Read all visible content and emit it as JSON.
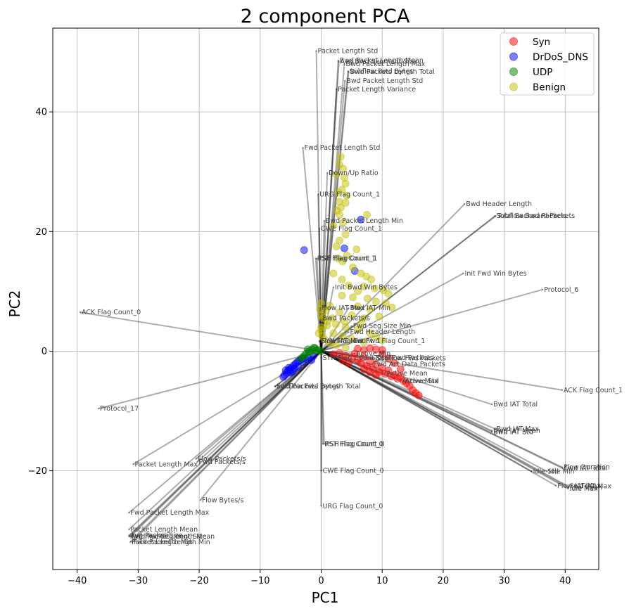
{
  "chart_data": {
    "type": "scatter",
    "title": "2 component PCA",
    "xlabel": "PC1",
    "ylabel": "PC2",
    "xlim": [
      -44,
      45.5
    ],
    "ylim": [
      -36.5,
      54
    ],
    "xticks": [
      -40,
      -30,
      -20,
      -10,
      0,
      10,
      20,
      30,
      40
    ],
    "yticks": [
      -20,
      0,
      20,
      40
    ],
    "xtick_labels": [
      "−40",
      "−30",
      "−20",
      "−10",
      "0",
      "10",
      "20",
      "30",
      "40"
    ],
    "ytick_labels": [
      "−20",
      "0",
      "20",
      "40"
    ],
    "grid": true,
    "legend_position": "top-right",
    "series": [
      {
        "name": "Syn",
        "color": "#ff0000",
        "points": [
          [
            2,
            -0.5
          ],
          [
            3,
            -0.3
          ],
          [
            4,
            -0.8
          ],
          [
            5,
            -1.2
          ],
          [
            5.5,
            -0.4
          ],
          [
            6,
            -1.5
          ],
          [
            6.5,
            -2
          ],
          [
            7,
            -1
          ],
          [
            7.5,
            -2.5
          ],
          [
            8,
            -1.8
          ],
          [
            8.5,
            -3
          ],
          [
            9,
            -2.2
          ],
          [
            9.5,
            -3.5
          ],
          [
            10,
            -2.8
          ],
          [
            10.5,
            -3.8
          ],
          [
            11,
            -3.2
          ],
          [
            11.5,
            -4.2
          ],
          [
            12,
            -4
          ],
          [
            12.5,
            -4.6
          ],
          [
            13,
            -4.2
          ],
          [
            13.5,
            -5
          ],
          [
            14,
            -5.4
          ],
          [
            14.5,
            -5.8
          ],
          [
            15,
            -6.5
          ],
          [
            15.5,
            -7
          ],
          [
            16,
            -7.4
          ],
          [
            9,
            0.3
          ],
          [
            8,
            0.5
          ],
          [
            6,
            0.4
          ],
          [
            10,
            -0.5
          ],
          [
            11,
            -1.2
          ],
          [
            12,
            -2
          ],
          [
            13,
            -3
          ],
          [
            4.5,
            -2
          ],
          [
            3.5,
            -1.5
          ],
          [
            7,
            -3
          ],
          [
            8,
            -3.5
          ],
          [
            9,
            -4
          ],
          [
            10,
            0.2
          ],
          [
            7,
            0.2
          ]
        ]
      },
      {
        "name": "DrDoS_DNS",
        "color": "#0000ff",
        "points": [
          [
            -6,
            -4
          ],
          [
            -5.7,
            -3.6
          ],
          [
            -5.4,
            -3.3
          ],
          [
            -5.1,
            -3
          ],
          [
            -4.8,
            -2.7
          ],
          [
            -4.5,
            -2.4
          ],
          [
            -4.2,
            -2.1
          ],
          [
            -3.9,
            -1.8
          ],
          [
            -3.6,
            -1.6
          ],
          [
            -3.3,
            -1.4
          ],
          [
            -3,
            -1.2
          ],
          [
            -5.8,
            -3.2
          ],
          [
            -5,
            -3.6
          ],
          [
            -4.4,
            -2.9
          ],
          [
            -6.2,
            -4.3
          ],
          [
            -3,
            -1.8
          ],
          [
            -2.6,
            -1.3
          ],
          [
            -2.2,
            -1
          ],
          [
            -1.6,
            -1.5
          ],
          [
            -1.3,
            -0.8
          ],
          [
            -4.7,
            -3.4
          ],
          [
            -3.8,
            -2.6
          ],
          [
            -5.3,
            -2.8
          ],
          [
            -2.8,
            16.9
          ],
          [
            3.8,
            17.2
          ],
          [
            5.5,
            13.4
          ],
          [
            6.5,
            22
          ]
        ]
      },
      {
        "name": "UDP",
        "color": "#008000",
        "points": [
          [
            -3,
            -1
          ],
          [
            -2.5,
            -0.4
          ],
          [
            -2,
            0
          ],
          [
            -1.5,
            0.3
          ],
          [
            -1,
            0.5
          ],
          [
            -0.5,
            0.2
          ],
          [
            0,
            0
          ],
          [
            -2.8,
            -0.8
          ],
          [
            -1.8,
            -0.2
          ],
          [
            -1.2,
            0.6
          ],
          [
            -0.8,
            0.1
          ],
          [
            -2.2,
            0.3
          ],
          [
            -3.4,
            -1.3
          ]
        ]
      },
      {
        "name": "Benign",
        "color": "#bfbf00",
        "points": [
          [
            3.2,
            32.5
          ],
          [
            3,
            31.2
          ],
          [
            3.6,
            30.5
          ],
          [
            2.5,
            29.5
          ],
          [
            3.8,
            29
          ],
          [
            4,
            28
          ],
          [
            3.4,
            27
          ],
          [
            2.8,
            26.5
          ],
          [
            4.2,
            26
          ],
          [
            3,
            25
          ],
          [
            4,
            24.8
          ],
          [
            3.2,
            24
          ],
          [
            2.6,
            23.5
          ],
          [
            3,
            22.8
          ],
          [
            7.5,
            22.8
          ],
          [
            3.6,
            21.5
          ],
          [
            2,
            21
          ],
          [
            4,
            19.5
          ],
          [
            3,
            18.5
          ],
          [
            2.5,
            17.5
          ],
          [
            5.8,
            17
          ],
          [
            4.2,
            16
          ],
          [
            2.8,
            15.5
          ],
          [
            3.5,
            15
          ],
          [
            5.2,
            14
          ],
          [
            2,
            13
          ],
          [
            6.5,
            13
          ],
          [
            7.4,
            12.5
          ],
          [
            3.4,
            12
          ],
          [
            8.2,
            12
          ],
          [
            4.5,
            11
          ],
          [
            7,
            10.8
          ],
          [
            8.8,
            10.5
          ],
          [
            10.2,
            10.2
          ],
          [
            6,
            10
          ],
          [
            11,
            9.6
          ],
          [
            3.4,
            9.3
          ],
          [
            5.2,
            9
          ],
          [
            7.6,
            8.8
          ],
          [
            9,
            8.3
          ],
          [
            10.6,
            8
          ],
          [
            1.4,
            7.6
          ],
          [
            6,
            7.5
          ],
          [
            11.6,
            7.3
          ],
          [
            8,
            7
          ],
          [
            3,
            6.5
          ],
          [
            5,
            6
          ],
          [
            7,
            5.5
          ],
          [
            9.5,
            5.8
          ],
          [
            1,
            5
          ],
          [
            2.4,
            4.5
          ],
          [
            4,
            4
          ],
          [
            6,
            3.6
          ],
          [
            0,
            3.5
          ],
          [
            2,
            3
          ],
          [
            3.5,
            2.5
          ],
          [
            5,
            2
          ],
          [
            7,
            1.5
          ],
          [
            0.5,
            2
          ],
          [
            1.5,
            1.3
          ],
          [
            2.5,
            1
          ],
          [
            4,
            0.6
          ],
          [
            0,
            8
          ],
          [
            0,
            6
          ],
          [
            0,
            4
          ],
          [
            0.2,
            2.5
          ],
          [
            -0.2,
            7
          ],
          [
            0.3,
            5.5
          ],
          [
            -0.4,
            3
          ],
          [
            1,
            4.3
          ],
          [
            0.8,
            6.8
          ],
          [
            1.8,
            5.5
          ],
          [
            3.8,
            5
          ],
          [
            6.5,
            4.5
          ],
          [
            8,
            3
          ],
          [
            9,
            2.4
          ],
          [
            10,
            1.8
          ]
        ]
      }
    ],
    "loadings": [
      {
        "label": "Packet Length Std",
        "x": -0.8,
        "y": 50.2
      },
      {
        "label": "Bwd Packet Length Mean",
        "x": 2.8,
        "y": 48.6
      },
      {
        "label": "Avg Bwd Segment Size",
        "x": 2.9,
        "y": 48.4
      },
      {
        "label": "Bwd Packet Length Max",
        "x": 3.8,
        "y": 48.0
      },
      {
        "label": "Subflow Bwd Bytes",
        "x": 4.4,
        "y": 46.8
      },
      {
        "label": "Bwd Packets Length Total",
        "x": 4.5,
        "y": 46.7
      },
      {
        "label": "Bwd Packet Length Std",
        "x": 3.9,
        "y": 45.2
      },
      {
        "label": "Packet Length Variance",
        "x": 2.5,
        "y": 43.8
      },
      {
        "label": "Fwd Packet Length Std",
        "x": -3.0,
        "y": 34.0
      },
      {
        "label": "Down/Up Ratio",
        "x": 1.0,
        "y": 29.8
      },
      {
        "label": "URG Flag Count_1",
        "x": -0.5,
        "y": 26.2
      },
      {
        "label": "Bwd Header Length",
        "x": 23.5,
        "y": 24.6
      },
      {
        "label": "Subflow Bwd Packets",
        "x": 28.5,
        "y": 22.6
      },
      {
        "label": "Total Backward Packets",
        "x": 28.6,
        "y": 22.6
      },
      {
        "label": "Bwd Packet Length Min",
        "x": 0.5,
        "y": 21.8
      },
      {
        "label": "CWE Flag Count_1",
        "x": -0.3,
        "y": 20.5
      },
      {
        "label": "RST Flag Count_1",
        "x": -0.9,
        "y": 15.5
      },
      {
        "label": "PSH Flag Count_1",
        "x": -0.7,
        "y": 15.5
      },
      {
        "label": "Init Fwd Win Bytes",
        "x": 23.3,
        "y": 13.0
      },
      {
        "label": "Protocol_6",
        "x": 36.3,
        "y": 10.3
      },
      {
        "label": "Init Bwd Win Bytes",
        "x": 2.0,
        "y": 10.7
      },
      {
        "label": "ACK Flag Count_0",
        "x": -39.5,
        "y": 6.5
      },
      {
        "label": "Flow IAT Max",
        "x": -0.2,
        "y": 7.2
      },
      {
        "label": "Bwd IAT Min",
        "x": 4.5,
        "y": 7.2
      },
      {
        "label": "Bwd Packets/s",
        "x": 0.0,
        "y": 5.5
      },
      {
        "label": "Fwd Seg Size Min",
        "x": 5.0,
        "y": 4.2
      },
      {
        "label": "Fwd Header Length",
        "x": 4.5,
        "y": 3.2
      },
      {
        "label": "SYN Flag Count_1",
        "x": -0.2,
        "y": 1.7
      },
      {
        "label": "Flow IAT Min",
        "x": -0.3,
        "y": 1.7
      },
      {
        "label": "Init Fwd Flag Count_1",
        "x": 5.0,
        "y": 1.7
      },
      {
        "label": "Active Min",
        "x": 5.5,
        "y": -0.4
      },
      {
        "label": "Total Fwd Packets",
        "x": 8.5,
        "y": -1.1
      },
      {
        "label": "Subflow Fwd Packets",
        "x": 8.8,
        "y": -1.2
      },
      {
        "label": "Fwd Act Data Packets",
        "x": 8.3,
        "y": -2.2
      },
      {
        "label": "SYN Flag Count_0",
        "x": 0.0,
        "y": -1.1
      },
      {
        "label": "Active Mean",
        "x": 10.5,
        "y": -3.7
      },
      {
        "label": "Active Std",
        "x": 13.5,
        "y": -5.0
      },
      {
        "label": "Active Max",
        "x": 13.0,
        "y": -5.0
      },
      {
        "label": "Fwd Packets Length Total",
        "x": -7.5,
        "y": -5.9
      },
      {
        "label": "Subflow Fwd Bytes",
        "x": -7.6,
        "y": -5.9
      },
      {
        "label": "ACK Flag Count_1",
        "x": 39.5,
        "y": -6.5
      },
      {
        "label": "Protocol_17",
        "x": -36.5,
        "y": -9.6
      },
      {
        "label": "Bwd IAT Total",
        "x": 28.0,
        "y": -8.9
      },
      {
        "label": "Bwd IAT Mean",
        "x": 28.0,
        "y": -13.3
      },
      {
        "label": "Bwd IAT Max",
        "x": 28.5,
        "y": -13.0
      },
      {
        "label": "Bwd IAT Std",
        "x": 28.0,
        "y": -13.5
      },
      {
        "label": "RST Flag Count_0",
        "x": 0.3,
        "y": -15.5
      },
      {
        "label": "PSH Flag Count_0",
        "x": 0.5,
        "y": -15.5
      },
      {
        "label": "Flow Packets/s",
        "x": -20.5,
        "y": -18.0
      },
      {
        "label": "Fwd Packets/s",
        "x": -20.3,
        "y": -18.5
      },
      {
        "label": "Packet Length Max",
        "x": -30.8,
        "y": -18.9
      },
      {
        "label": "CWE Flag Count_0",
        "x": 0.0,
        "y": -20.0
      },
      {
        "label": "Flow Duration",
        "x": 39.5,
        "y": -19.4
      },
      {
        "label": "Fwd IAT Total",
        "x": 39.6,
        "y": -19.6
      },
      {
        "label": "Idle Std",
        "x": 34.5,
        "y": -20.1
      },
      {
        "label": "Idle Min",
        "x": 37.0,
        "y": -20.1
      },
      {
        "label": "Flow IAT Max",
        "x": 38.5,
        "y": -22.5
      },
      {
        "label": "Fwd IAT Max",
        "x": 40.5,
        "y": -22.6
      },
      {
        "label": "Idle Mean",
        "x": 40.5,
        "y": -22.8
      },
      {
        "label": "Idle Max",
        "x": 40.5,
        "y": -23.0
      },
      {
        "label": "Flow Bytes/s",
        "x": -19.8,
        "y": -24.9
      },
      {
        "label": "Fwd Packet Length Max",
        "x": -31.5,
        "y": -27.0
      },
      {
        "label": "URG Flag Count_0",
        "x": 0.0,
        "y": -25.9
      },
      {
        "label": "Packet Length Mean",
        "x": -31.5,
        "y": -29.8
      },
      {
        "label": "Avg Packet Size",
        "x": -31.5,
        "y": -30.8
      },
      {
        "label": "Avg Fwd Segment Size",
        "x": -31.5,
        "y": -31.0
      },
      {
        "label": "Fwd Packet Length Mean",
        "x": -31.3,
        "y": -31.0
      },
      {
        "label": "Packet Length Min",
        "x": -31.3,
        "y": -31.9
      },
      {
        "label": "Fwd Packet Length Min",
        "x": -31.0,
        "y": -31.9
      }
    ]
  }
}
